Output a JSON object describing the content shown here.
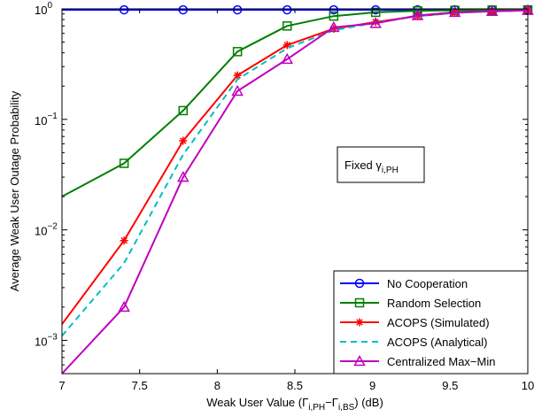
{
  "chart_data": {
    "type": "line",
    "xlabel": "Weak User Value (Γ",
    "xlabel_sub1": "i,PH",
    "xlabel_mid": "−Γ",
    "xlabel_sub2": "i,BS",
    "xlabel_end": ") (dB)",
    "ylabel": "Average Weak User Outage Probability",
    "xlim": [
      7,
      10
    ],
    "ylim": [
      0.0005,
      1
    ],
    "yscale": "log",
    "grid": false,
    "legend_position": "bottom-right",
    "x_ticks": [
      "7",
      "7.5",
      "8",
      "8.5",
      "9",
      "9.5",
      "10"
    ],
    "y_ticks": [
      {
        "base": "10",
        "exp": "0",
        "value": 1
      },
      {
        "base": "10",
        "exp": "−1",
        "value": 0.1
      },
      {
        "base": "10",
        "exp": "−2",
        "value": 0.01
      },
      {
        "base": "10",
        "exp": "−3",
        "value": 0.001
      }
    ],
    "annotation": {
      "text": "Fixed γ",
      "sub": "i,PH",
      "x": 8.92,
      "y": 0.042
    },
    "series": [
      {
        "name": "No Cooperation",
        "color": "#0000ff",
        "dash": false,
        "marker": "circle",
        "x": [
          7,
          7.4,
          7.78,
          8.13,
          8.45,
          8.75,
          9.02,
          9.29,
          9.53,
          9.77,
          10
        ],
        "y": [
          0.98,
          0.98,
          0.98,
          0.98,
          0.98,
          0.98,
          0.98,
          0.98,
          0.98,
          0.98,
          0.98
        ],
        "markers": [
          false,
          true,
          true,
          true,
          true,
          true,
          true,
          true,
          true,
          true,
          true
        ]
      },
      {
        "name": "Random Selection",
        "color": "#007f00",
        "dash": false,
        "marker": "square",
        "x": [
          7,
          7.4,
          7.78,
          8.13,
          8.45,
          8.75,
          9.02,
          9.29,
          9.53,
          9.77,
          10
        ],
        "y": [
          0.02,
          0.04,
          0.12,
          0.41,
          0.7,
          0.86,
          0.93,
          0.96,
          0.97,
          0.975,
          0.98
        ],
        "markers": [
          false,
          true,
          true,
          true,
          true,
          true,
          true,
          true,
          true,
          true,
          true
        ]
      },
      {
        "name": "ACOPS (Simulated)",
        "color": "#ff0000",
        "dash": false,
        "marker": "star",
        "x": [
          7,
          7.4,
          7.78,
          8.13,
          8.45,
          8.75,
          9.02,
          9.29,
          9.53,
          9.77,
          10
        ],
        "y": [
          0.0014,
          0.008,
          0.064,
          0.25,
          0.47,
          0.66,
          0.76,
          0.86,
          0.92,
          0.95,
          0.97
        ],
        "markers": [
          false,
          true,
          true,
          true,
          true,
          true,
          true,
          true,
          true,
          true,
          true
        ]
      },
      {
        "name": "ACOPS (Analytical)",
        "color": "#00bfbf",
        "dash": true,
        "marker": "none",
        "x": [
          7,
          7.4,
          7.78,
          8.13,
          8.45,
          8.75,
          9.02,
          9.29,
          9.53,
          9.77,
          10
        ],
        "y": [
          0.0011,
          0.005,
          0.048,
          0.23,
          0.44,
          0.64,
          0.75,
          0.86,
          0.92,
          0.95,
          0.97
        ],
        "markers": [
          false,
          false,
          false,
          false,
          false,
          false,
          false,
          false,
          false,
          false,
          false
        ]
      },
      {
        "name": "Centralized Max−Min",
        "color": "#bf00bf",
        "dash": false,
        "marker": "triangle",
        "x": [
          7,
          7.4,
          7.78,
          8.13,
          8.45,
          8.75,
          9.02,
          9.29,
          9.53,
          9.77,
          10
        ],
        "y": [
          0.0005,
          0.002,
          0.03,
          0.18,
          0.35,
          0.68,
          0.74,
          0.87,
          0.93,
          0.95,
          0.97
        ],
        "markers": [
          false,
          true,
          true,
          true,
          true,
          true,
          true,
          true,
          true,
          true,
          true
        ]
      }
    ]
  }
}
